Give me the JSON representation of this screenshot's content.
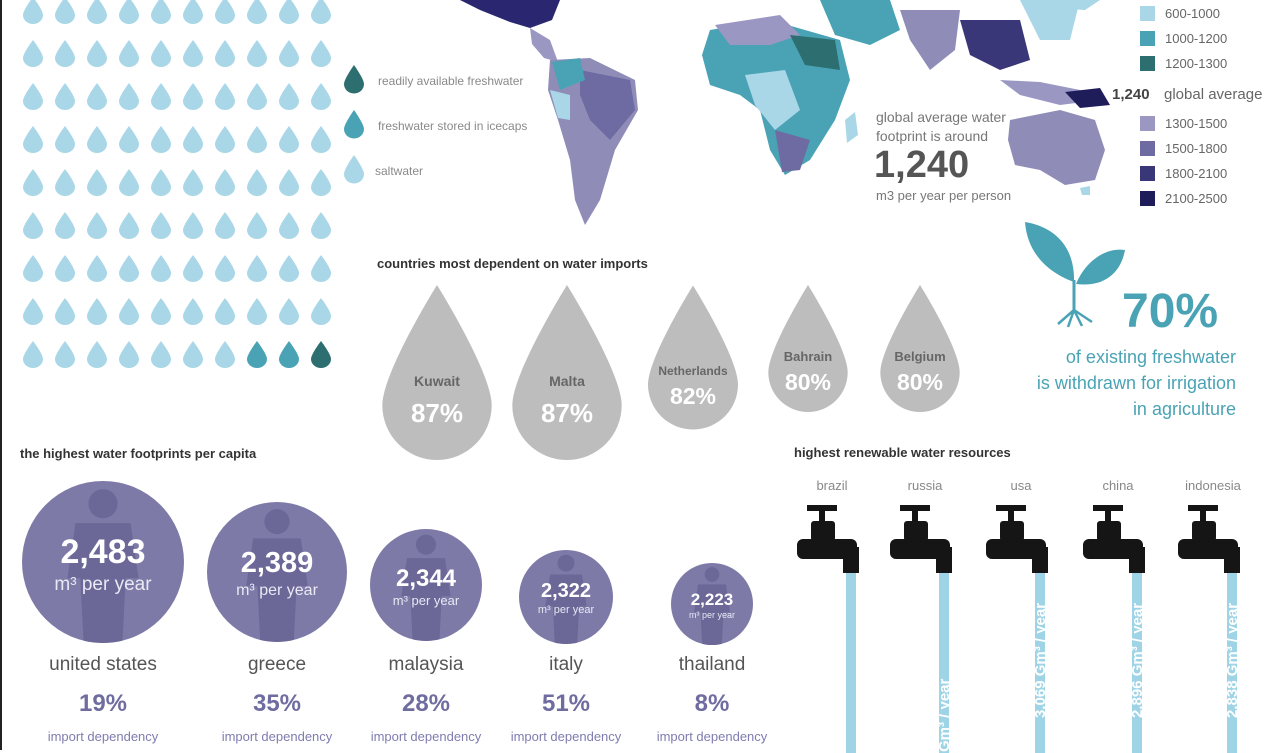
{
  "colors": {
    "drop_light": "#a9d7e8",
    "drop_mid": "#4aa3b5",
    "drop_dark": "#2d6e70",
    "gray_drop": "#bdbdbd",
    "footprint_circle": "#7d7aa8",
    "tap_black": "#151515",
    "water_stream": "#9fd4e6"
  },
  "water_drops": {
    "legend": [
      {
        "label": "readily available freshwater",
        "color": "#2d6e70"
      },
      {
        "label": "freshwater stored in icecaps",
        "color": "#4aa3b5"
      },
      {
        "label": "saltwater",
        "color": "#a9d7e8"
      }
    ]
  },
  "map_legend": {
    "items_top": [
      {
        "label": "600-1000",
        "color": "#a9d7e8"
      },
      {
        "label": "1000-1200",
        "color": "#4aa3b5"
      },
      {
        "label": "1200-1300",
        "color": "#2d6e70"
      }
    ],
    "global_average_value": "1,240",
    "global_average_label": "global average",
    "items_bottom": [
      {
        "label": "1300-1500",
        "color": "#9a98c2"
      },
      {
        "label": "1500-1800",
        "color": "#6e6ba3"
      },
      {
        "label": "1800-2100",
        "color": "#3a3778"
      },
      {
        "label": "2100-2500",
        "color": "#1f1c5a"
      }
    ]
  },
  "global_average": {
    "line1": "global average water",
    "line2": "footprint is around",
    "value": "1,240",
    "unit": "m3 per year per person"
  },
  "imports": {
    "title": "countries most dependent on water imports",
    "items": [
      {
        "country": "Kuwait",
        "pct": "87%"
      },
      {
        "country": "Malta",
        "pct": "87%"
      },
      {
        "country": "Netherlands",
        "pct": "82%"
      },
      {
        "country": "Bahrain",
        "pct": "80%"
      },
      {
        "country": "Belgium",
        "pct": "80%"
      }
    ]
  },
  "irrigation": {
    "value": "70%",
    "line1": "of existing freshwater",
    "line2": "is withdrawn for irrigation",
    "line3": "in agriculture"
  },
  "footprints": {
    "title": "the highest water footprints per capita",
    "unit": "m³ per year",
    "dependency_label": "import dependency",
    "items": [
      {
        "value": "2,483",
        "country": "united states",
        "dependency": "19%"
      },
      {
        "value": "2,389",
        "country": "greece",
        "dependency": "35%"
      },
      {
        "value": "2,344",
        "country": "malaysia",
        "dependency": "28%"
      },
      {
        "value": "2,322",
        "country": "italy",
        "dependency": "51%"
      },
      {
        "value": "2,223",
        "country": "thailand",
        "dependency": "8%"
      }
    ]
  },
  "renewable": {
    "title": "highest renewable water resources",
    "items": [
      {
        "country": "brazil",
        "volume": ""
      },
      {
        "country": "russia",
        "volume": "Gm³ / year"
      },
      {
        "country": "usa",
        "volume": "3,069 Gm³ / year"
      },
      {
        "country": "china",
        "volume": "2,896 Gm³ / year"
      },
      {
        "country": "indonesia",
        "volume": "2,838 Gm³ / year"
      }
    ]
  }
}
